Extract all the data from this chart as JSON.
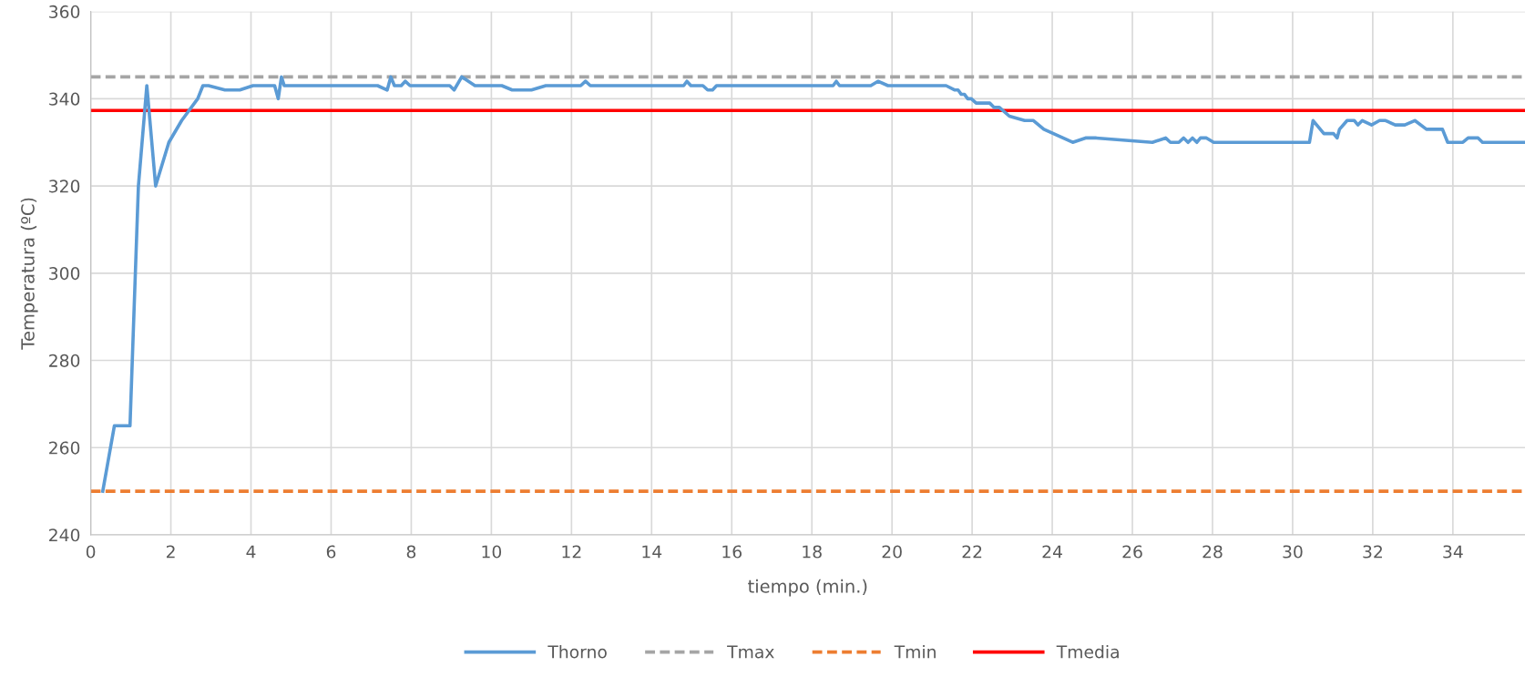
{
  "chart_data": {
    "type": "line",
    "xlabel": "tiempo (min.)",
    "ylabel": "Temperatura (ºC)",
    "xlim": [
      0,
      35.8
    ],
    "ylim": [
      240,
      360
    ],
    "xticks": [
      0,
      2,
      4,
      6,
      8,
      10,
      12,
      14,
      16,
      18,
      20,
      22,
      24,
      26,
      28,
      30,
      32,
      34
    ],
    "yticks": [
      240,
      260,
      280,
      300,
      320,
      340,
      360
    ],
    "grid": true,
    "legend": "bottom",
    "marker": "none",
    "line_style": "solid",
    "series": [
      {
        "name": "Thorno",
        "color": "#5b9bd5",
        "x": [
          0.3,
          0.59,
          0.98,
          1.19,
          1.4,
          1.62,
          1.95,
          2.27,
          2.67,
          2.8,
          2.94,
          3.35,
          3.72,
          4.05,
          4.59,
          4.68,
          4.76,
          4.83,
          7.16,
          7.4,
          7.49,
          7.58,
          7.75,
          7.85,
          7.97,
          8.96,
          9.07,
          9.26,
          9.59,
          10.26,
          10.52,
          11.0,
          11.36,
          12.23,
          12.35,
          12.47,
          14.8,
          14.88,
          14.98,
          15.28,
          15.4,
          15.52,
          15.62,
          18.53,
          18.61,
          18.69,
          19.47,
          19.65,
          19.9,
          21.35,
          21.57,
          21.65,
          21.73,
          21.81,
          21.89,
          21.98,
          22.1,
          22.44,
          22.55,
          22.68,
          22.93,
          23.31,
          23.53,
          23.79,
          24.51,
          24.83,
          25.1,
          26.5,
          26.83,
          26.95,
          27.16,
          27.28,
          27.39,
          27.5,
          27.61,
          27.7,
          27.85,
          28.03,
          30.42,
          30.51,
          30.78,
          31.02,
          31.11,
          31.17,
          31.36,
          31.54,
          31.63,
          31.74,
          31.97,
          32.17,
          32.32,
          32.56,
          32.8,
          33.05,
          33.34,
          33.74,
          33.87,
          34.25,
          34.38,
          34.63,
          34.74,
          35.8
        ],
        "values": [
          250,
          265,
          265,
          320,
          343,
          320,
          330,
          335,
          340,
          343,
          343,
          342,
          342,
          343,
          343,
          340,
          345,
          343,
          343,
          342,
          345,
          343,
          343,
          344,
          343,
          343,
          342,
          345,
          343,
          343,
          342,
          342,
          343,
          343,
          344,
          343,
          343,
          344,
          343,
          343,
          342,
          342,
          343,
          343,
          344,
          343,
          343,
          344,
          343,
          343,
          342,
          342,
          341,
          341,
          340,
          340,
          339,
          339,
          338,
          338,
          336,
          335,
          335,
          333,
          330,
          331,
          331,
          330,
          331,
          330,
          330,
          331,
          330,
          331,
          330,
          331,
          331,
          330,
          330,
          335,
          332,
          332,
          331,
          333,
          335,
          335,
          334,
          335,
          334,
          335,
          335,
          334,
          334,
          335,
          333,
          333,
          330,
          330,
          331,
          331,
          330,
          330
        ]
      }
    ],
    "ref_lines": [
      {
        "axis": "y",
        "value": 345,
        "label": "Tmax",
        "color": "#a5a5a5",
        "line_style": "dashed"
      },
      {
        "axis": "y",
        "value": 250,
        "label": "Tmin",
        "color": "#ed7d31",
        "line_style": "dashed"
      },
      {
        "axis": "y",
        "value": 337.3,
        "label": "Tmedia",
        "color": "#ff0000",
        "line_style": "solid"
      }
    ]
  }
}
